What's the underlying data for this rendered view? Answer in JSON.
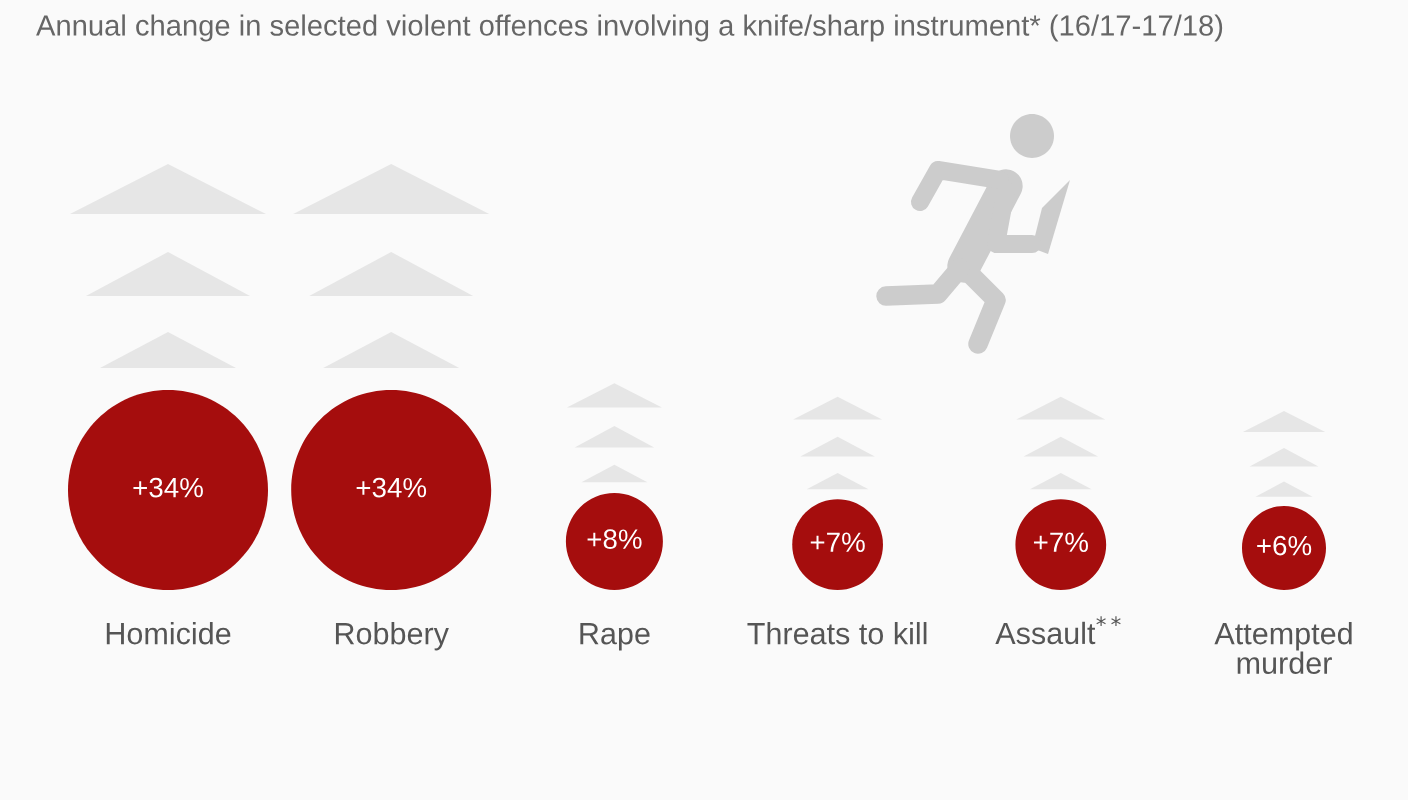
{
  "chart_data": {
    "type": "other",
    "title": "Annual change in selected violent offences involving a knife/sharp instrument* (16/17-17/18)",
    "categories": [
      "Homicide",
      "Robbery",
      "Rape",
      "Threats to kill",
      "Assault$^{**}$",
      "Attempted\nmurder"
    ],
    "values": [
      34,
      34,
      8,
      7,
      7,
      6
    ],
    "value_labels": [
      "+34%",
      "+34%",
      "+8%",
      "+7%",
      "+7%",
      "+6%"
    ],
    "color": "#a50d0d"
  }
}
